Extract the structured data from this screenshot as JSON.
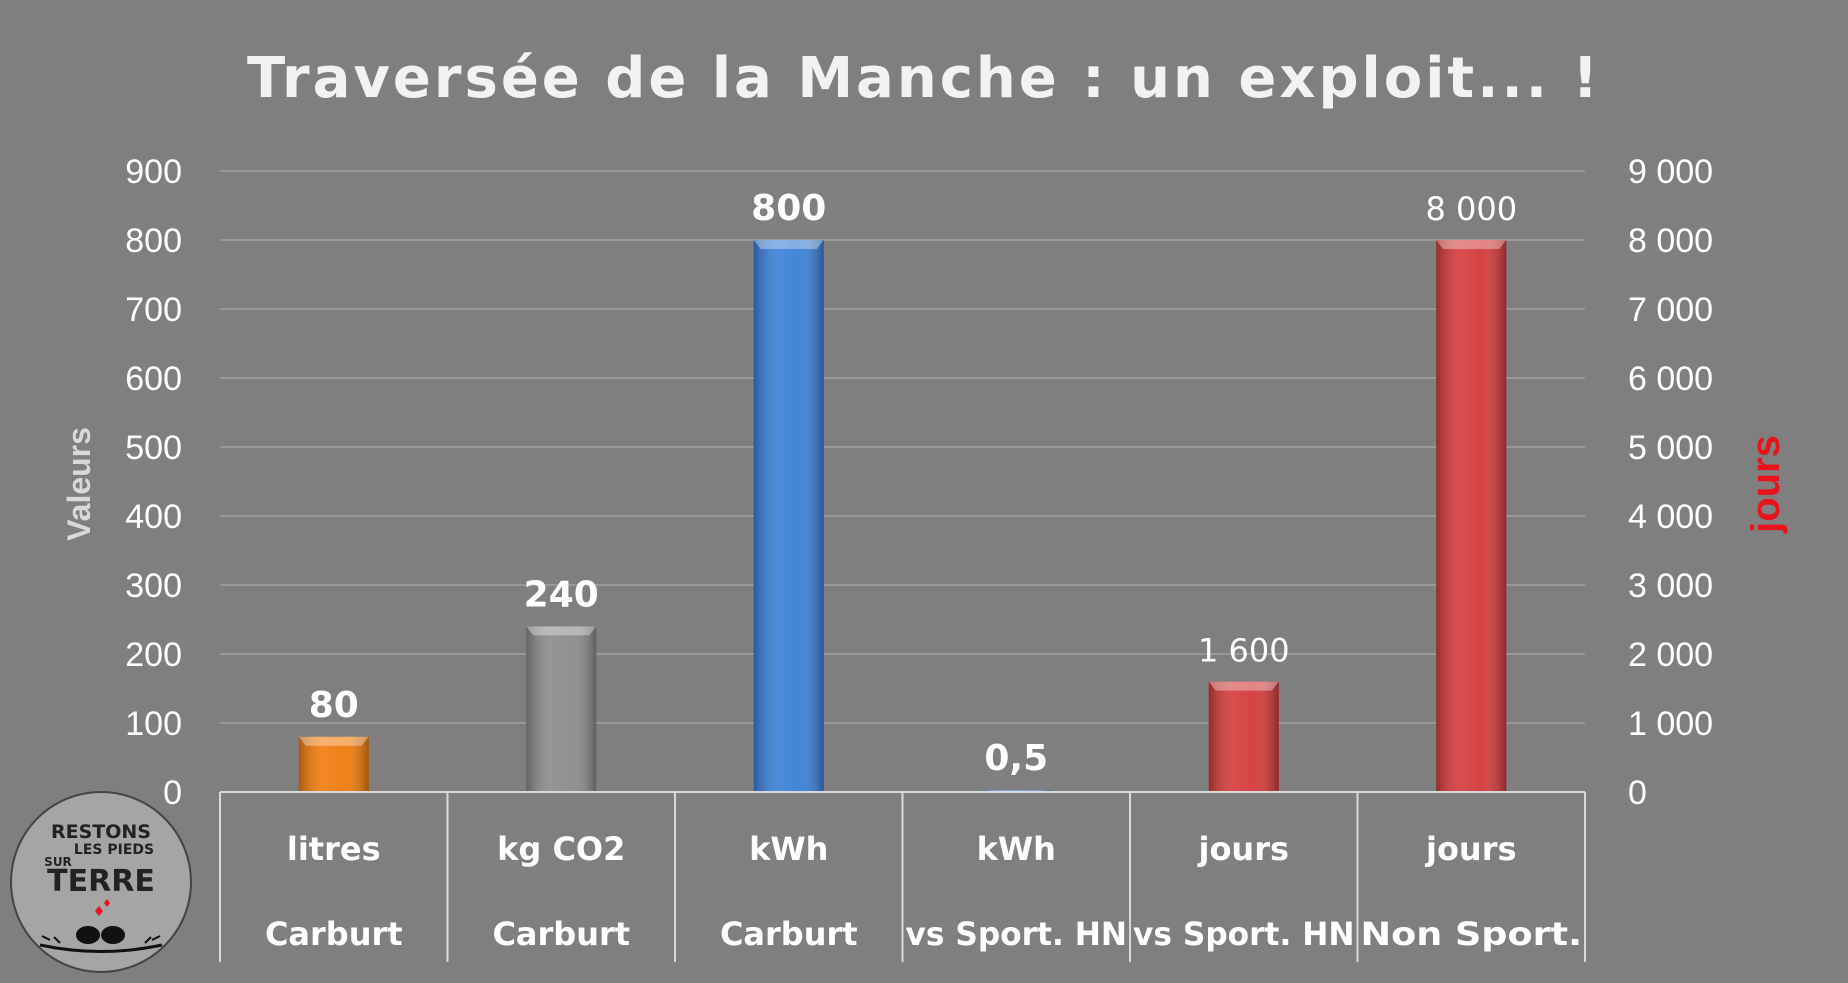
{
  "chart_data": {
    "type": "bar",
    "title": "Traversée de la Manche : un exploit... !",
    "ylabel": "Valeurs",
    "y2label": "jours",
    "ylim": [
      0,
      900
    ],
    "y2lim": [
      0,
      9000
    ],
    "yticks": [
      "0",
      "100",
      "200",
      "300",
      "400",
      "500",
      "600",
      "700",
      "800",
      "900"
    ],
    "y2ticks": [
      "0",
      "1 000",
      "2 000",
      "3 000",
      "4 000",
      "5 000",
      "6 000",
      "7 000",
      "8 000",
      "9 000"
    ],
    "grid": true,
    "categories": [
      {
        "unit": "litres",
        "group": "Carburt"
      },
      {
        "unit": "kg CO2",
        "group": "Carburt"
      },
      {
        "unit": "kWh",
        "group": "Carburt"
      },
      {
        "unit": "kWh",
        "group": "vs Sport. HN"
      },
      {
        "unit": "jours",
        "group": "vs Sport. HN"
      },
      {
        "unit": "jours",
        "group": "Non Sport."
      }
    ],
    "bars": [
      {
        "value": 80,
        "label": "80",
        "axis": "primary",
        "color": "#f07b0c",
        "bold": true
      },
      {
        "value": 240,
        "label": "240",
        "axis": "primary",
        "color": "#8a8a8a",
        "bold": true
      },
      {
        "value": 800,
        "label": "800",
        "axis": "primary",
        "color": "#3a7fd6",
        "bold": true
      },
      {
        "value": 0.5,
        "label": "0,5",
        "axis": "primary",
        "color": "#6e9fe0",
        "bold": true
      },
      {
        "value": 1600,
        "label": "1 600",
        "axis": "secondary",
        "color": "#d43a3a",
        "bold": false
      },
      {
        "value": 8000,
        "label": "8 000",
        "axis": "secondary",
        "color": "#d43a3a",
        "bold": false
      }
    ],
    "colors": {
      "background": "#7f7f7f",
      "grid": "#999999",
      "y2label": "#e8131b",
      "ylabel": "#d9d9d9"
    }
  },
  "logo": {
    "line1": "RESTONS",
    "line2": "LES PIEDS",
    "line3": "SUR",
    "line4": "TERRE"
  }
}
